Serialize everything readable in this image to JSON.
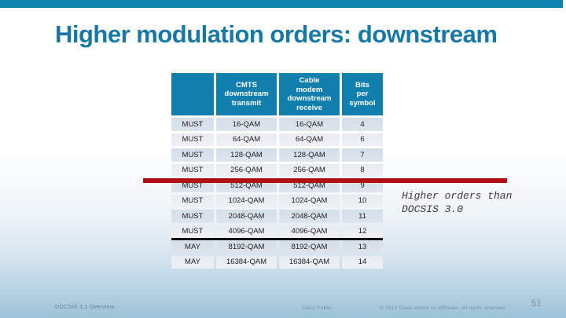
{
  "slide": {
    "title": "Higher modulation orders: downstream",
    "annotation": "Higher orders than\nDOCSIS 3.0",
    "footer": {
      "deck": "DOCSIS 3.1 Overview",
      "classification": "Cisco Public",
      "copyright": "© 2014 Cisco and/or its affiliates. All rights reserved.",
      "page_number": "51"
    },
    "colors": {
      "accent_teal": "#0E81AF",
      "title_teal": "#1878A5",
      "marker_red": "#B00F13",
      "divider_black": "#101010",
      "row_dark": "#D9E1EA",
      "row_light": "#EAEEF3"
    }
  },
  "table": {
    "headers": [
      "",
      "CMTS\ndownstream\ntransmit",
      "Cable\nmodem\ndownstream\nreceive",
      "Bits\nper\nsymbol"
    ],
    "rows": [
      {
        "req": "MUST",
        "tx": "16-QAM",
        "rx": "16-QAM",
        "bits": "4"
      },
      {
        "req": "MUST",
        "tx": "64-QAM",
        "rx": "64-QAM",
        "bits": "6"
      },
      {
        "req": "MUST",
        "tx": "128-QAM",
        "rx": "128-QAM",
        "bits": "7"
      },
      {
        "req": "MUST",
        "tx": "256-QAM",
        "rx": "256-QAM",
        "bits": "8"
      },
      {
        "req": "MUST",
        "tx": "512-QAM",
        "rx": "512-QAM",
        "bits": "9"
      },
      {
        "req": "MUST",
        "tx": "1024-QAM",
        "rx": "1024-QAM",
        "bits": "10"
      },
      {
        "req": "MUST",
        "tx": "2048-QAM",
        "rx": "2048-QAM",
        "bits": "11"
      },
      {
        "req": "MUST",
        "tx": "4096-QAM",
        "rx": "4096-QAM",
        "bits": "12"
      },
      {
        "req": "MAY",
        "tx": "8192-QAM",
        "rx": "8192-QAM",
        "bits": "13"
      },
      {
        "req": "MAY",
        "tx": "16384-QAM",
        "rx": "16384-QAM",
        "bits": "14"
      }
    ]
  }
}
